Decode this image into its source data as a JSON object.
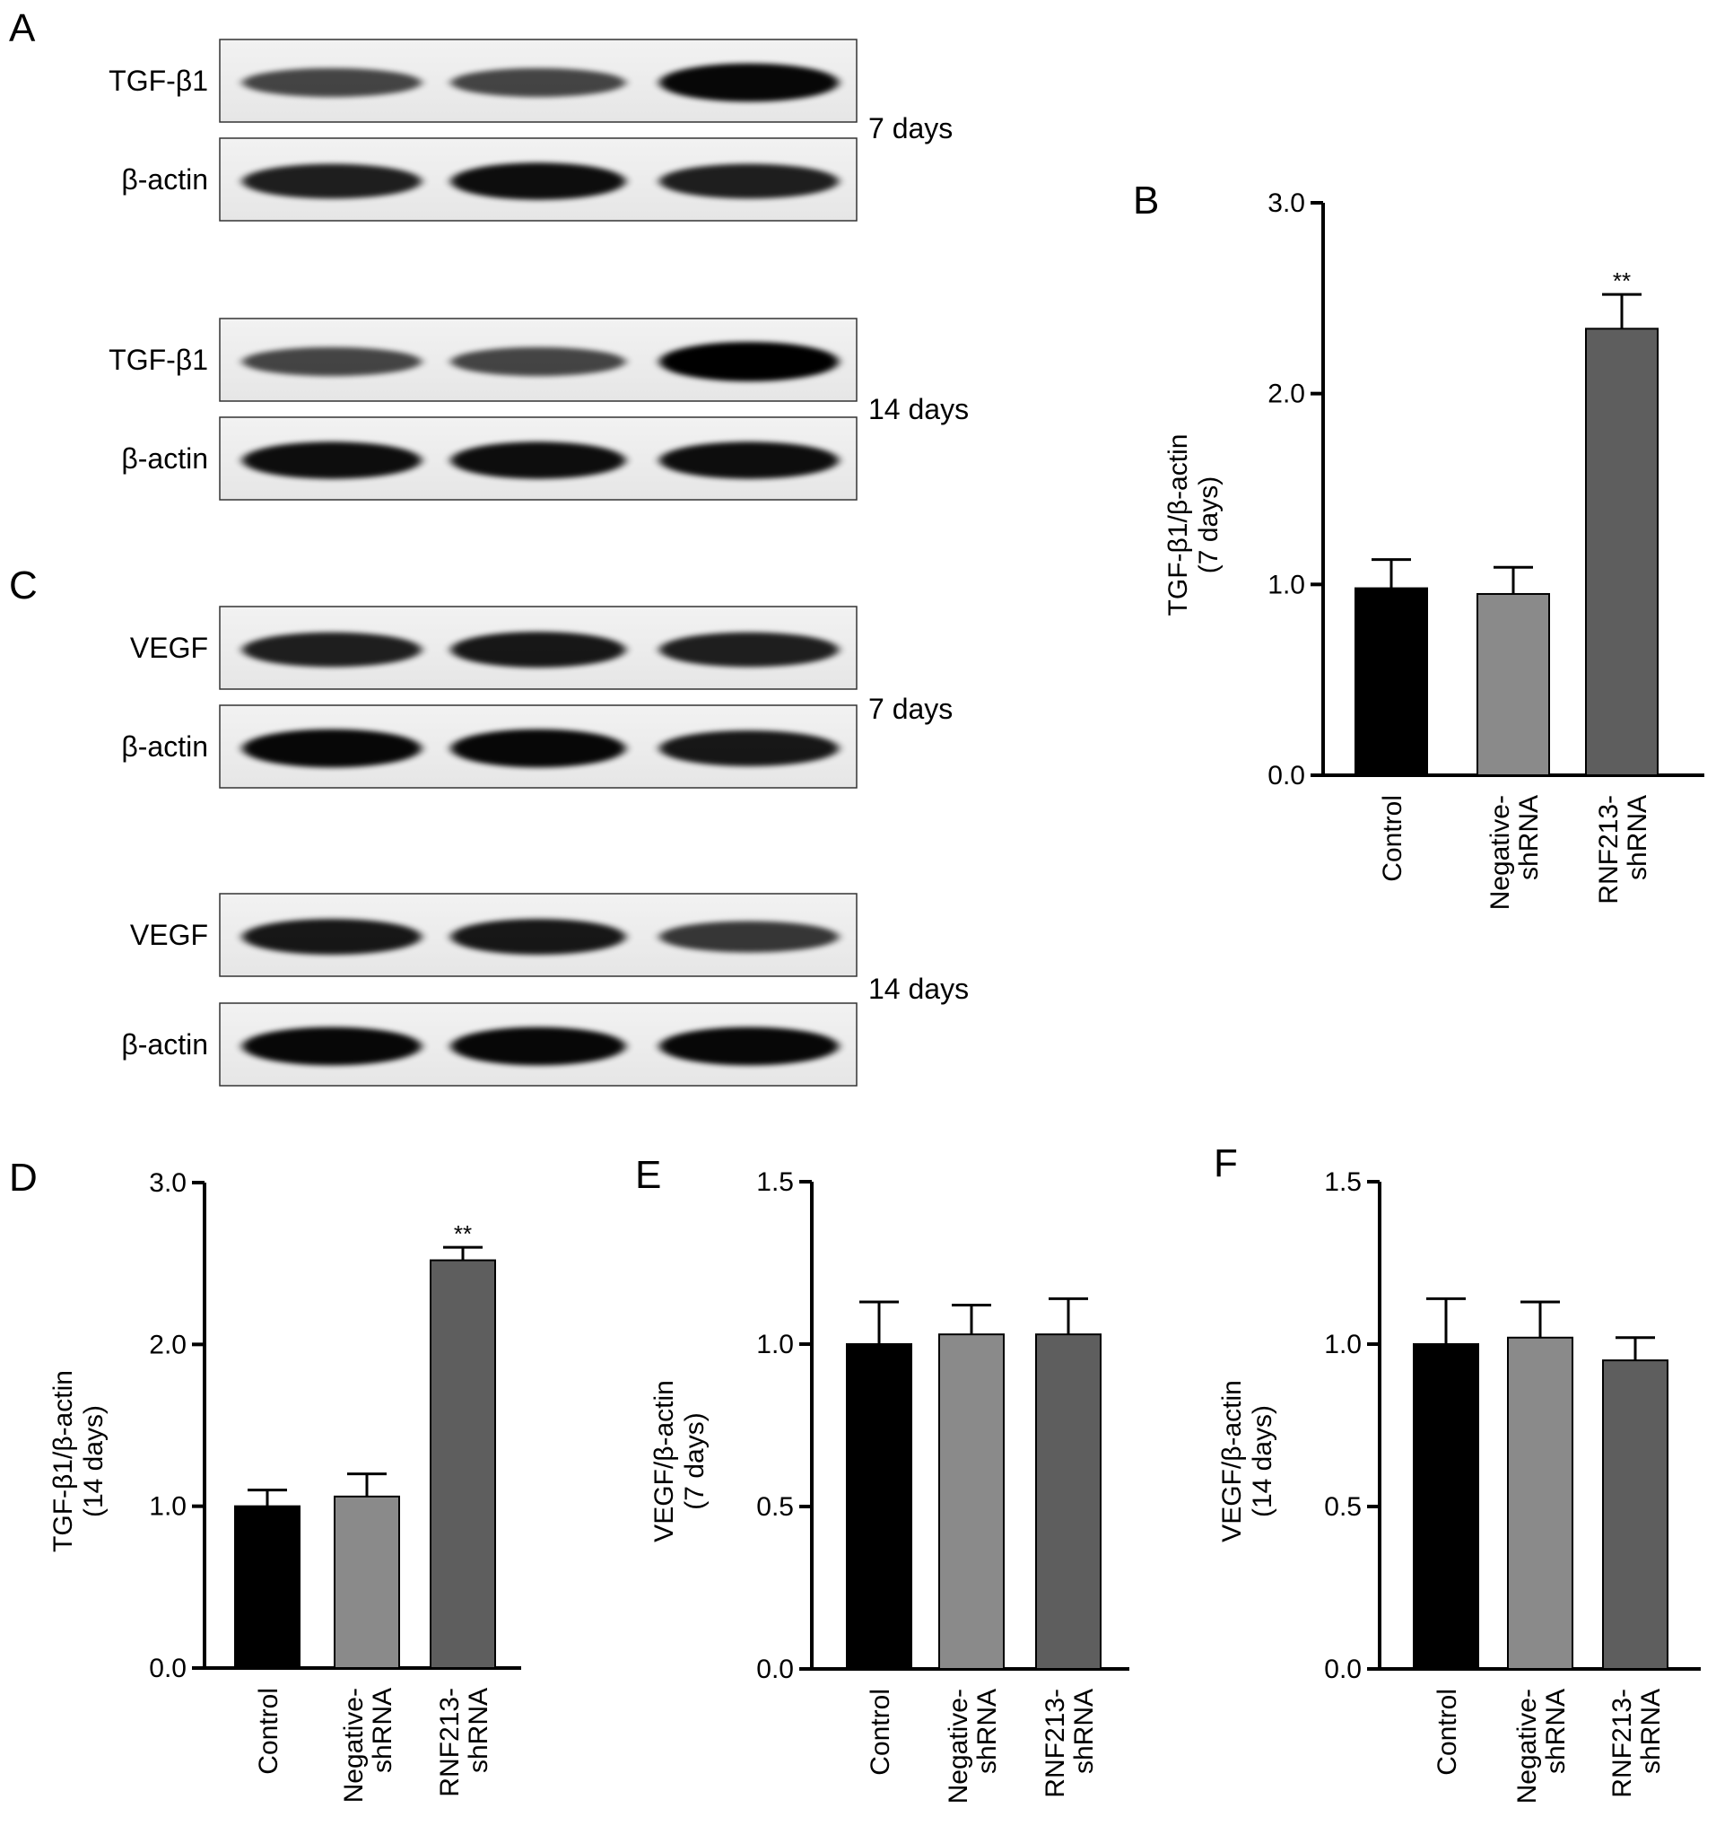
{
  "panel_labels": {
    "A": "A",
    "B": "B",
    "C": "C",
    "D": "D",
    "E": "E",
    "F": "F"
  },
  "blots": {
    "A": {
      "groups": [
        {
          "time_label": "7 days",
          "rows": [
            "TGF-β1",
            "β-actin"
          ],
          "intensity": [
            [
              0.55,
              0.55,
              0.95
            ],
            [
              0.8,
              0.9,
              0.8
            ]
          ]
        },
        {
          "time_label": "14 days",
          "rows": [
            "TGF-β1",
            "β-actin"
          ],
          "intensity": [
            [
              0.55,
              0.55,
              1.0
            ],
            [
              0.9,
              0.9,
              0.9
            ]
          ]
        }
      ]
    },
    "C": {
      "groups": [
        {
          "time_label": "7 days",
          "rows": [
            "VEGF",
            "β-actin"
          ],
          "intensity": [
            [
              0.8,
              0.85,
              0.8
            ],
            [
              0.95,
              0.95,
              0.85
            ]
          ]
        },
        {
          "time_label": "14 days",
          "rows": [
            "VEGF",
            "β-actin"
          ],
          "intensity": [
            [
              0.85,
              0.85,
              0.65
            ],
            [
              0.95,
              0.95,
              0.95
            ]
          ]
        }
      ]
    }
  },
  "chart_data": [
    {
      "panel": "B",
      "type": "bar",
      "categories": [
        "Control",
        "Negative-\nshRNA",
        "RNF213-\nshRNA"
      ],
      "values": [
        0.98,
        0.95,
        2.34
      ],
      "errors": [
        0.15,
        0.14,
        0.18
      ],
      "significance": [
        "",
        "",
        "**"
      ],
      "ylabel": "TGF-β1/β-actin\n(7 days)",
      "ylim": [
        0,
        3.0
      ],
      "yticks": [
        "0.0",
        "1.0",
        "2.0",
        "3.0"
      ],
      "colors": [
        "#000000",
        "#8a8a8a",
        "#5e5e5e"
      ]
    },
    {
      "panel": "D",
      "type": "bar",
      "categories": [
        "Control",
        "Negative-\nshRNA",
        "RNF213-\nshRNA"
      ],
      "values": [
        1.0,
        1.06,
        2.52
      ],
      "errors": [
        0.1,
        0.14,
        0.08
      ],
      "significance": [
        "",
        "",
        "**"
      ],
      "ylabel": "TGF-β1/β-actin\n(14 days)",
      "ylim": [
        0,
        3.0
      ],
      "yticks": [
        "0.0",
        "1.0",
        "2.0",
        "3.0"
      ],
      "colors": [
        "#000000",
        "#8a8a8a",
        "#5e5e5e"
      ]
    },
    {
      "panel": "E",
      "type": "bar",
      "categories": [
        "Control",
        "Negative-\nshRNA",
        "RNF213-\nshRNA"
      ],
      "values": [
        1.0,
        1.03,
        1.03
      ],
      "errors": [
        0.13,
        0.09,
        0.11
      ],
      "significance": [
        "",
        "",
        ""
      ],
      "ylabel": "VEGF/β-actin\n(7 days)",
      "ylim": [
        0,
        1.5
      ],
      "yticks": [
        "0.0",
        "0.5",
        "1.0",
        "1.5"
      ],
      "colors": [
        "#000000",
        "#8a8a8a",
        "#5e5e5e"
      ]
    },
    {
      "panel": "F",
      "type": "bar",
      "categories": [
        "Control",
        "Negative-\nshRNA",
        "RNF213-\nshRNA"
      ],
      "values": [
        1.0,
        1.02,
        0.95
      ],
      "errors": [
        0.14,
        0.11,
        0.07
      ],
      "significance": [
        "",
        "",
        ""
      ],
      "ylabel": "VEGF/β-actin\n(14 days)",
      "ylim": [
        0,
        1.5
      ],
      "yticks": [
        "0.0",
        "0.5",
        "1.0",
        "1.5"
      ],
      "colors": [
        "#000000",
        "#8a8a8a",
        "#5e5e5e"
      ]
    }
  ]
}
